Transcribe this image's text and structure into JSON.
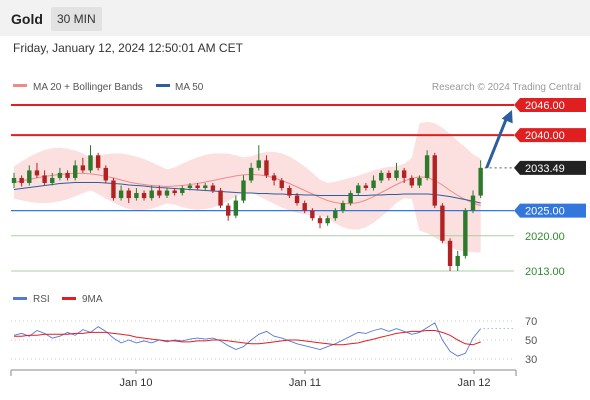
{
  "header": {
    "title": "Gold",
    "timeframe": "30 MIN"
  },
  "datetime": "Friday, January 12, 2024 12:50:01 AM CET",
  "legend": [
    {
      "label": "MA 20 + Bollinger Bands",
      "color": "#f08a8a"
    },
    {
      "label": "MA 50",
      "color": "#2c5d9e"
    }
  ],
  "credit": "Research © 2024 Trading Central",
  "colors": {
    "up": "#2d7a2d",
    "down": "#b22222",
    "resistance": "#e02020",
    "support": "#3377dd",
    "target": "#4a9a4a",
    "arrow": "#2c5d9e"
  },
  "chart_data": [
    {
      "type": "candlestick",
      "ylim": [
        2010,
        2050
      ],
      "x_ticks": [
        "Jan 10",
        "Jan 11",
        "Jan 12"
      ],
      "levels": [
        {
          "value": 2046.0,
          "label": "2046.00",
          "kind": "resistance"
        },
        {
          "value": 2040.0,
          "label": "2040.00",
          "kind": "resistance"
        },
        {
          "value": 2033.49,
          "label": "2033.49",
          "kind": "current"
        },
        {
          "value": 2025.0,
          "label": "2025.00",
          "kind": "support"
        },
        {
          "value": 2020.0,
          "label": "2020.00",
          "kind": "target"
        },
        {
          "value": 2013.0,
          "label": "2013.00",
          "kind": "target"
        }
      ],
      "projection": {
        "from": 2033.5,
        "to": 2045.0
      },
      "series": [
        {
          "name": "MA 20 + Bollinger Bands",
          "values": [
            2030.6,
            2030.9,
            2031.2,
            2031.5,
            2031.8,
            2032.0,
            2032.2,
            2032.3,
            2032.4,
            2032.4,
            2032.3,
            2032.1,
            2031.8,
            2031.5,
            2031.1,
            2030.7,
            2030.4,
            2030.2,
            2030.0,
            2029.9,
            2029.8,
            2029.9,
            2030.0,
            2030.2,
            2030.4,
            2030.7,
            2031.0,
            2031.3,
            2031.6,
            2031.9,
            2032.1,
            2032.2,
            2032.1,
            2031.9,
            2031.5,
            2031.0,
            2030.4,
            2029.7,
            2029.0,
            2028.3,
            2027.6,
            2027.0,
            2026.6,
            2026.4,
            2026.4,
            2026.6,
            2027.1,
            2027.8,
            2028.6,
            2029.4,
            2030.2,
            2030.9,
            2031.4,
            2031.7,
            2031.6,
            2031.0,
            2030.1,
            2029.0,
            2028.0,
            2027.2,
            2026.5,
            2026.0
          ]
        },
        {
          "name": "MA 50",
          "values": [
            2029.2,
            2029.4,
            2029.6,
            2029.8,
            2030.0,
            2030.2,
            2030.4,
            2030.5,
            2030.6,
            2030.6,
            2030.6,
            2030.6,
            2030.5,
            2030.4,
            2030.3,
            2030.1,
            2030.0,
            2029.9,
            2029.7,
            2029.6,
            2029.5,
            2029.4,
            2029.3,
            2029.2,
            2029.1,
            2029.0,
            2028.9,
            2028.8,
            2028.7,
            2028.6,
            2028.5,
            2028.5,
            2028.4,
            2028.4,
            2028.3,
            2028.3,
            2028.2,
            2028.2,
            2028.1,
            2028.1,
            2028.0,
            2028.0,
            2028.0,
            2028.0,
            2028.0,
            2028.0,
            2028.0,
            2028.1,
            2028.1,
            2028.2,
            2028.2,
            2028.3,
            2028.3,
            2028.3,
            2028.3,
            2028.2,
            2028.0,
            2027.8,
            2027.5,
            2027.2,
            2026.9,
            2026.5
          ]
        }
      ],
      "candles": [
        {
          "o": 2030.5,
          "c": 2031.5,
          "h": 2032.5,
          "l": 2029.5
        },
        {
          "o": 2031.5,
          "c": 2030.5,
          "h": 2032.0,
          "l": 2029.8
        },
        {
          "o": 2030.5,
          "c": 2033.0,
          "h": 2034.0,
          "l": 2030.0
        },
        {
          "o": 2033.0,
          "c": 2032.0,
          "h": 2034.5,
          "l": 2031.5
        },
        {
          "o": 2032.0,
          "c": 2030.5,
          "h": 2033.0,
          "l": 2030.0
        },
        {
          "o": 2030.5,
          "c": 2031.5,
          "h": 2032.5,
          "l": 2030.0
        },
        {
          "o": 2031.5,
          "c": 2032.5,
          "h": 2033.5,
          "l": 2031.0
        },
        {
          "o": 2032.5,
          "c": 2031.5,
          "h": 2033.0,
          "l": 2031.0
        },
        {
          "o": 2031.5,
          "c": 2034.0,
          "h": 2035.0,
          "l": 2031.0
        },
        {
          "o": 2034.0,
          "c": 2033.0,
          "h": 2035.5,
          "l": 2032.5
        },
        {
          "o": 2033.0,
          "c": 2036.0,
          "h": 2038.0,
          "l": 2032.5
        },
        {
          "o": 2036.0,
          "c": 2033.5,
          "h": 2036.5,
          "l": 2033.0
        },
        {
          "o": 2033.5,
          "c": 2031.0,
          "h": 2034.0,
          "l": 2030.5
        },
        {
          "o": 2031.0,
          "c": 2027.5,
          "h": 2031.5,
          "l": 2027.0
        },
        {
          "o": 2027.5,
          "c": 2029.0,
          "h": 2030.0,
          "l": 2027.0
        },
        {
          "o": 2029.0,
          "c": 2027.5,
          "h": 2029.5,
          "l": 2026.5
        },
        {
          "o": 2027.5,
          "c": 2028.5,
          "h": 2029.5,
          "l": 2027.0
        },
        {
          "o": 2028.5,
          "c": 2027.5,
          "h": 2029.0,
          "l": 2027.0
        },
        {
          "o": 2027.5,
          "c": 2029.0,
          "h": 2030.0,
          "l": 2027.0
        },
        {
          "o": 2029.0,
          "c": 2028.0,
          "h": 2030.0,
          "l": 2027.5
        },
        {
          "o": 2028.0,
          "c": 2029.0,
          "h": 2029.5,
          "l": 2027.5
        },
        {
          "o": 2029.0,
          "c": 2028.5,
          "h": 2029.5,
          "l": 2028.0
        },
        {
          "o": 2028.5,
          "c": 2029.5,
          "h": 2030.0,
          "l": 2028.0
        },
        {
          "o": 2029.5,
          "c": 2030.0,
          "h": 2030.5,
          "l": 2029.0
        },
        {
          "o": 2030.0,
          "c": 2029.5,
          "h": 2030.5,
          "l": 2029.0
        },
        {
          "o": 2029.5,
          "c": 2030.0,
          "h": 2030.5,
          "l": 2029.0
        },
        {
          "o": 2030.0,
          "c": 2029.0,
          "h": 2030.5,
          "l": 2028.5
        },
        {
          "o": 2029.0,
          "c": 2026.0,
          "h": 2029.5,
          "l": 2025.5
        },
        {
          "o": 2026.0,
          "c": 2024.0,
          "h": 2026.5,
          "l": 2023.0
        },
        {
          "o": 2024.0,
          "c": 2027.0,
          "h": 2028.0,
          "l": 2023.5
        },
        {
          "o": 2027.0,
          "c": 2031.0,
          "h": 2032.0,
          "l": 2026.5
        },
        {
          "o": 2031.0,
          "c": 2033.5,
          "h": 2034.5,
          "l": 2030.5
        },
        {
          "o": 2033.5,
          "c": 2035.0,
          "h": 2038.0,
          "l": 2033.0
        },
        {
          "o": 2035.0,
          "c": 2032.0,
          "h": 2036.0,
          "l": 2031.5
        },
        {
          "o": 2032.0,
          "c": 2031.0,
          "h": 2032.5,
          "l": 2030.0
        },
        {
          "o": 2031.0,
          "c": 2029.5,
          "h": 2031.5,
          "l": 2029.0
        },
        {
          "o": 2029.5,
          "c": 2028.0,
          "h": 2030.0,
          "l": 2027.5
        },
        {
          "o": 2028.0,
          "c": 2026.5,
          "h": 2028.5,
          "l": 2026.0
        },
        {
          "o": 2026.5,
          "c": 2025.0,
          "h": 2027.0,
          "l": 2024.5
        },
        {
          "o": 2025.0,
          "c": 2023.5,
          "h": 2025.5,
          "l": 2023.0
        },
        {
          "o": 2023.5,
          "c": 2022.5,
          "h": 2024.0,
          "l": 2021.5
        },
        {
          "o": 2022.5,
          "c": 2023.5,
          "h": 2024.0,
          "l": 2022.0
        },
        {
          "o": 2023.5,
          "c": 2025.0,
          "h": 2025.5,
          "l": 2023.0
        },
        {
          "o": 2025.0,
          "c": 2026.5,
          "h": 2027.0,
          "l": 2024.5
        },
        {
          "o": 2026.5,
          "c": 2028.5,
          "h": 2029.0,
          "l": 2026.0
        },
        {
          "o": 2028.5,
          "c": 2030.0,
          "h": 2030.5,
          "l": 2028.0
        },
        {
          "o": 2030.0,
          "c": 2029.5,
          "h": 2030.5,
          "l": 2029.0
        },
        {
          "o": 2029.5,
          "c": 2031.0,
          "h": 2032.0,
          "l": 2029.0
        },
        {
          "o": 2031.0,
          "c": 2032.5,
          "h": 2033.0,
          "l": 2030.5
        },
        {
          "o": 2032.5,
          "c": 2031.5,
          "h": 2033.0,
          "l": 2031.0
        },
        {
          "o": 2031.5,
          "c": 2033.0,
          "h": 2034.5,
          "l": 2031.0
        },
        {
          "o": 2033.0,
          "c": 2031.5,
          "h": 2033.5,
          "l": 2030.5
        },
        {
          "o": 2031.5,
          "c": 2030.0,
          "h": 2032.0,
          "l": 2029.5
        },
        {
          "o": 2030.0,
          "c": 2031.5,
          "h": 2032.0,
          "l": 2029.5
        },
        {
          "o": 2031.5,
          "c": 2036.0,
          "h": 2037.0,
          "l": 2031.0
        },
        {
          "o": 2036.0,
          "c": 2026.0,
          "h": 2036.5,
          "l": 2025.5
        },
        {
          "o": 2026.0,
          "c": 2019.0,
          "h": 2026.5,
          "l": 2018.5
        },
        {
          "o": 2019.0,
          "c": 2014.0,
          "h": 2019.5,
          "l": 2013.0
        },
        {
          "o": 2014.0,
          "c": 2016.0,
          "h": 2017.0,
          "l": 2013.0
        },
        {
          "o": 2016.0,
          "c": 2025.0,
          "h": 2025.5,
          "l": 2015.5
        },
        {
          "o": 2025.0,
          "c": 2028.0,
          "h": 2029.0,
          "l": 2024.5
        },
        {
          "o": 2028.0,
          "c": 2033.5,
          "h": 2035.0,
          "l": 2027.5
        }
      ]
    },
    {
      "type": "line",
      "ylim": [
        20,
        80
      ],
      "y_ticks": [
        70,
        50,
        30
      ],
      "legend": [
        {
          "label": "RSI",
          "color": "#5577dd"
        },
        {
          "label": "9MA",
          "color": "#e02020"
        }
      ],
      "series": [
        {
          "name": "RSI",
          "values": [
            55,
            57,
            54,
            60,
            57,
            52,
            54,
            58,
            55,
            61,
            58,
            64,
            59,
            52,
            47,
            50,
            47,
            49,
            47,
            50,
            48,
            50,
            49,
            51,
            52,
            51,
            52,
            49,
            44,
            40,
            43,
            50,
            56,
            59,
            54,
            52,
            49,
            46,
            44,
            42,
            40,
            43,
            46,
            50,
            54,
            58,
            57,
            60,
            62,
            59,
            62,
            59,
            56,
            58,
            63,
            68,
            50,
            38,
            33,
            36,
            52,
            62
          ]
        },
        {
          "name": "9MA",
          "values": [
            54,
            54,
            55,
            55,
            56,
            56,
            56,
            56,
            57,
            57,
            58,
            58,
            58,
            57,
            56,
            55,
            53,
            52,
            51,
            50,
            49,
            49,
            48,
            48,
            49,
            49,
            50,
            50,
            49,
            48,
            47,
            46,
            46,
            47,
            48,
            49,
            50,
            50,
            49,
            48,
            47,
            46,
            45,
            45,
            46,
            47,
            49,
            51,
            53,
            55,
            57,
            58,
            59,
            59,
            60,
            60,
            58,
            55,
            50,
            46,
            45,
            48
          ]
        }
      ]
    }
  ]
}
